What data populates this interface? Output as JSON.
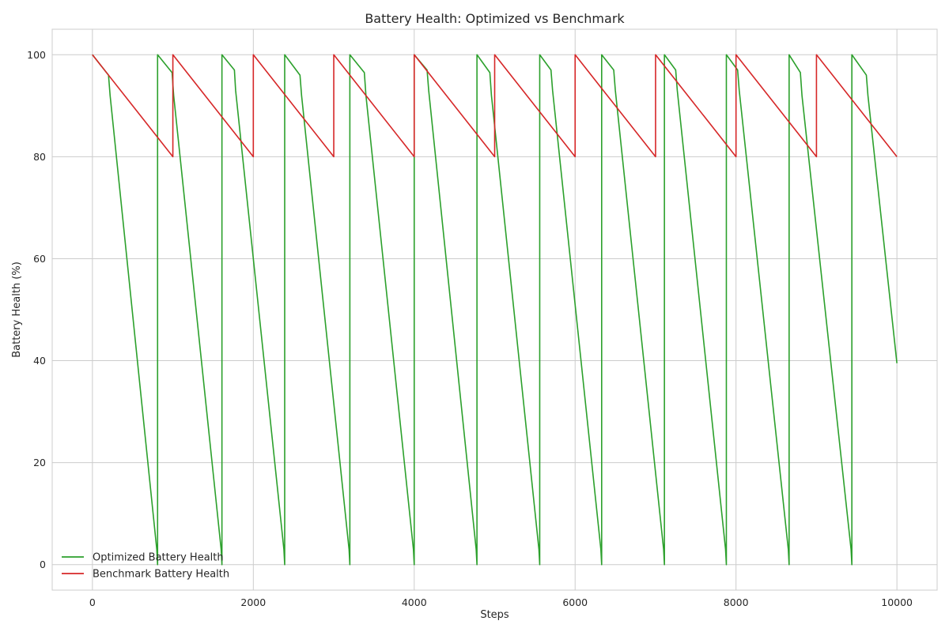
{
  "chart_data": {
    "type": "line",
    "title": "Battery Health: Optimized vs Benchmark",
    "xlabel": "Steps",
    "ylabel": "Battery Health (%)",
    "xlim": [
      -500,
      10500
    ],
    "ylim": [
      -5,
      105
    ],
    "xticks": [
      0,
      2000,
      4000,
      6000,
      8000,
      10000
    ],
    "yticks": [
      0,
      20,
      40,
      60,
      80,
      100
    ],
    "grid": true,
    "legend_position": "lower-left",
    "series": [
      {
        "name": "Optimized Battery Health",
        "color": "#2ca02c",
        "x": [
          0,
          200,
          220,
          800,
          810,
          810,
          990,
          1010,
          1600,
          1610,
          1610,
          1765,
          1780,
          2380,
          2390,
          2390,
          2580,
          2600,
          3190,
          3200,
          3200,
          3380,
          3400,
          3990,
          4000,
          4000,
          4160,
          4180,
          4770,
          4780,
          4780,
          4940,
          4960,
          5550,
          5560,
          5560,
          5700,
          5720,
          6320,
          6330,
          6330,
          6480,
          6500,
          7100,
          7110,
          7110,
          7250,
          7270,
          7870,
          7880,
          7880,
          8020,
          8040,
          8650,
          8660,
          8660,
          8800,
          8820,
          9430,
          9440,
          9440,
          9620,
          9640,
          10000
        ],
        "y": [
          100,
          96,
          92,
          3,
          0,
          100,
          96.5,
          92,
          3,
          0,
          100,
          97,
          93,
          3,
          0,
          100,
          96,
          92,
          3,
          0,
          100,
          96.5,
          92,
          3,
          0,
          100,
          97,
          93,
          3,
          0,
          100,
          96.5,
          92,
          3,
          0,
          100,
          97,
          93,
          3,
          0,
          100,
          97,
          93,
          3,
          0,
          100,
          97,
          93,
          3,
          0,
          100,
          97,
          93,
          3,
          0,
          100,
          96.5,
          92,
          3,
          0,
          100,
          96,
          92,
          39.5
        ]
      },
      {
        "name": "Benchmark Battery Health",
        "color": "#d62728",
        "x": [
          0,
          1000,
          1000,
          2000,
          2000,
          3000,
          3000,
          4000,
          4000,
          5000,
          5000,
          6000,
          6000,
          7000,
          7000,
          8000,
          8000,
          9000,
          9000,
          10000
        ],
        "y": [
          100,
          80,
          100,
          80,
          100,
          80,
          100,
          80,
          100,
          80,
          100,
          80,
          100,
          80,
          100,
          80,
          100,
          80,
          100,
          80
        ]
      }
    ]
  }
}
